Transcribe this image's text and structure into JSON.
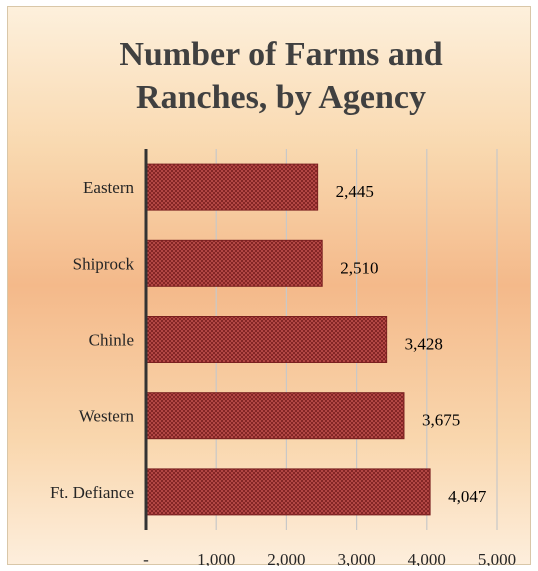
{
  "chart_data": {
    "type": "bar",
    "orientation": "horizontal",
    "title_lines": [
      "Number of Farms and",
      "Ranches, by Agency"
    ],
    "categories": [
      "Eastern",
      "Shiprock",
      "Chinle",
      "Western",
      "Ft. Defiance"
    ],
    "values": [
      2445,
      2510,
      3428,
      3675,
      4047
    ],
    "value_labels": [
      "2,445",
      "2,510",
      "3,428",
      "3,675",
      "4,047"
    ],
    "xlim": [
      0,
      5000
    ],
    "x_ticks": [
      0,
      1000,
      2000,
      3000,
      4000,
      5000
    ],
    "x_tick_labels": [
      "-",
      "1,000",
      "2,000",
      "3,000",
      "4,000",
      "5,000"
    ],
    "grid": true,
    "bar_color": "#c0504d",
    "bar_pattern_color": "#7a1f1f",
    "background_gradient": [
      "#fdf0dc",
      "#f4b98a",
      "#fdeedc"
    ]
  }
}
